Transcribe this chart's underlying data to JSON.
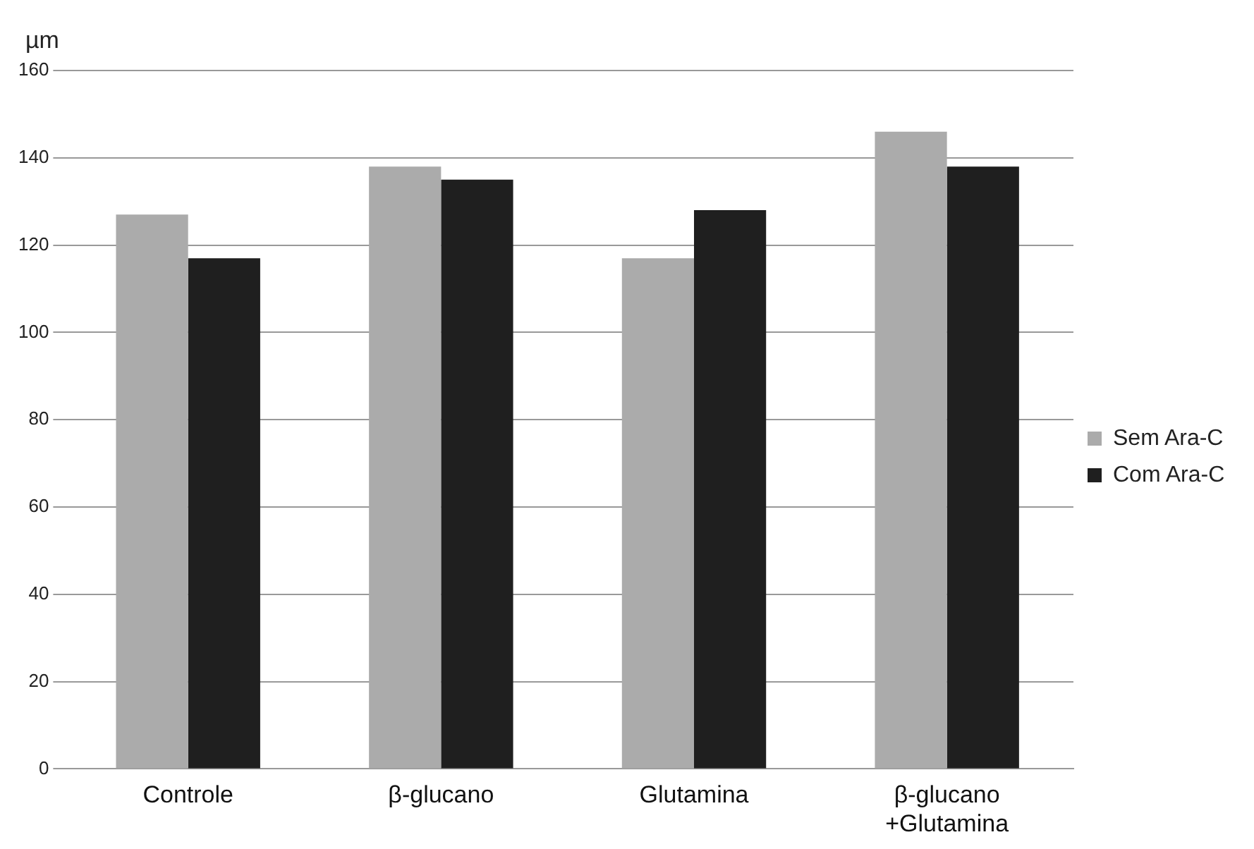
{
  "chart_data": {
    "type": "bar",
    "ylabel": "µm",
    "categories": [
      "Controle",
      "β-glucano",
      "Glutamina",
      "β-glucano\n+Glutamina"
    ],
    "series": [
      {
        "name": "Sem Ara-C",
        "color": "#ababab",
        "values": [
          127,
          138,
          117,
          146
        ]
      },
      {
        "name": "Com Ara-C",
        "color": "#1f1f1f",
        "values": [
          117,
          135,
          128,
          138
        ]
      }
    ],
    "ylim": [
      0,
      160
    ],
    "yticks": [
      0,
      20,
      40,
      60,
      80,
      100,
      120,
      140,
      160
    ],
    "grid": "y",
    "legend": "right"
  }
}
